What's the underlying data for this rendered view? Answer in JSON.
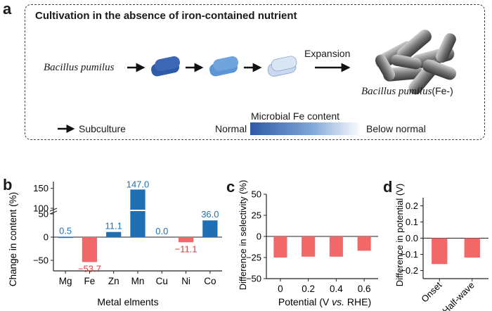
{
  "panel_a": {
    "letter": "a",
    "title": "Cultivation in the absence of iron-contained nutrient",
    "species_label": "Bacillus pumilus",
    "expansion_label": "Expansion",
    "result_species": "Bacillus pumilus",
    "result_suffix": "(Fe-)",
    "legend_subculture": "Subculture",
    "gradient_title": "Microbial Fe content",
    "gradient_left": "Normal",
    "gradient_right": "Below normal",
    "colors": {
      "dark": "#2f5aa6",
      "mid": "#5b95d3",
      "light": "#c9d8ef"
    }
  },
  "panel_b": {
    "letter": "b"
  },
  "panel_c": {
    "letter": "c"
  },
  "panel_d": {
    "letter": "d"
  },
  "chart_data": [
    {
      "type": "bar",
      "panel": "b",
      "categories": [
        "Mg",
        "Fe",
        "Zn",
        "Mn",
        "Cu",
        "Ni",
        "Co"
      ],
      "values": [
        0.5,
        -53.7,
        11.1,
        147.0,
        0.0,
        -11.1,
        36.0
      ],
      "labels": [
        "0.5",
        "−53.7",
        "11.1",
        "147.0",
        "0.0",
        "−11.1",
        "36.0"
      ],
      "xlabel": "Metal elments",
      "ylabel": "Change in content (%)",
      "yticks": [
        "150",
        "100",
        "50",
        "0",
        "−50"
      ],
      "axis_break": true,
      "colors": {
        "positive": "#1f6fb4",
        "negative": "#f26868",
        "label_pos": "#1f6fb4",
        "label_neg": "#e03b3b"
      }
    },
    {
      "type": "bar",
      "panel": "c",
      "categories": [
        "0",
        "0.2",
        "0.4",
        "0.6"
      ],
      "values": [
        -25,
        -24,
        -24,
        -17
      ],
      "xlabel_parts": [
        "Potential (V ",
        "vs.",
        " RHE)"
      ],
      "ylabel": "Difference in selectivity (%)",
      "ylim": [
        -50,
        50
      ],
      "yticks": [
        "50",
        "25",
        "0",
        "−25",
        "−50"
      ],
      "color": "#f26868"
    },
    {
      "type": "bar",
      "panel": "d",
      "categories": [
        "Onset",
        "Half-wave"
      ],
      "values": [
        -0.16,
        -0.12
      ],
      "ylabel": "Difference in potential (V)",
      "ylim": [
        -0.25,
        0.25
      ],
      "yticks": [
        "0.2",
        "0.1",
        "0.0",
        "−0.1",
        "−0.2"
      ],
      "color": "#f26868"
    }
  ]
}
